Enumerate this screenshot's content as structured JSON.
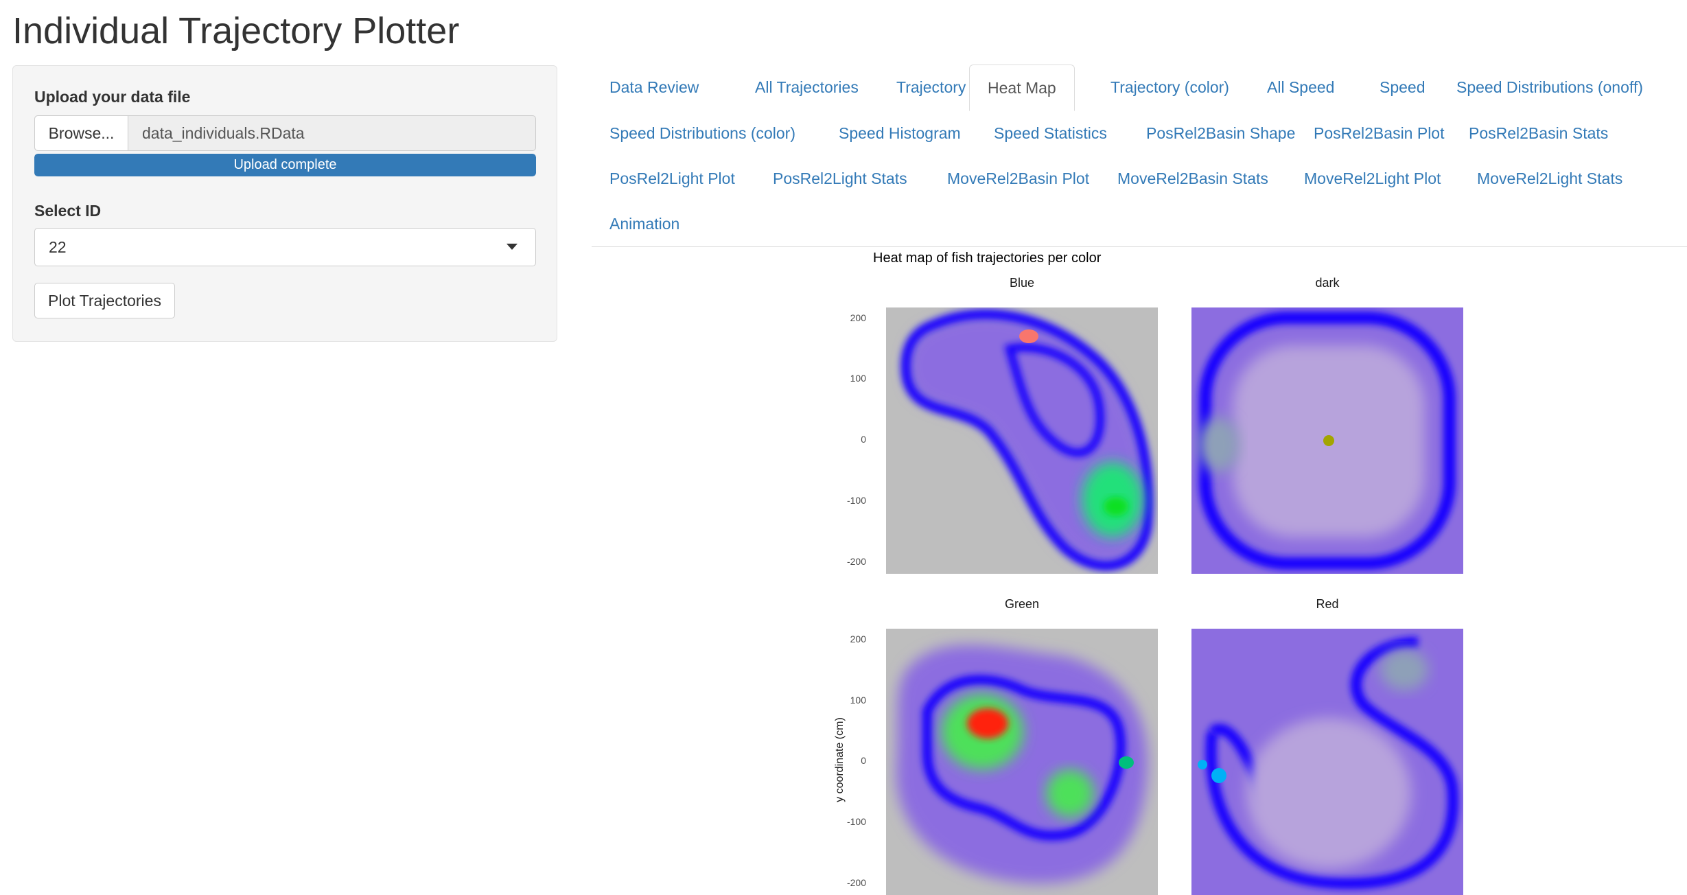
{
  "app": {
    "title": "Individual Trajectory Plotter"
  },
  "sidebar": {
    "upload_label": "Upload your data file",
    "browse_label": "Browse...",
    "file_name": "data_individuals.RData",
    "progress_text": "Upload complete",
    "progress_value": 100,
    "select_label": "Select ID",
    "selected_id": "22",
    "plot_button": "Plot Trajectories"
  },
  "tabs": [
    {
      "label": "Data Review",
      "active": false
    },
    {
      "label": "All Trajectories",
      "active": false
    },
    {
      "label": "Trajectory",
      "active": false
    },
    {
      "label": "Heat Map",
      "active": true
    },
    {
      "label": "Trajectory (color)",
      "active": false
    },
    {
      "label": "All Speed",
      "active": false
    },
    {
      "label": "Speed",
      "active": false
    },
    {
      "label": "Speed Distributions (onoff)",
      "active": false
    },
    {
      "label": "Speed Distributions (color)",
      "active": false
    },
    {
      "label": "Speed Histogram",
      "active": false
    },
    {
      "label": "Speed Statistics",
      "active": false
    },
    {
      "label": "PosRel2Basin Shape",
      "active": false
    },
    {
      "label": "PosRel2Basin Plot",
      "active": false
    },
    {
      "label": "PosRel2Basin Stats",
      "active": false
    },
    {
      "label": "PosRel2Light Plot",
      "active": false
    },
    {
      "label": "PosRel2Light Stats",
      "active": false
    },
    {
      "label": "MoveRel2Basin Plot",
      "active": false
    },
    {
      "label": "MoveRel2Basin Stats",
      "active": false
    },
    {
      "label": "MoveRel2Light Plot",
      "active": false
    },
    {
      "label": "MoveRel2Light Stats",
      "active": false
    },
    {
      "label": "Animation",
      "active": false
    }
  ],
  "heatmap": {
    "title": "Heat map of fish trajectories per color",
    "ylabel": "y coordinate (cm)",
    "yticks": [
      "200",
      "100",
      "0",
      "-100",
      "-200"
    ],
    "panels": [
      {
        "name": "Blue",
        "marker_color": "#f8766d"
      },
      {
        "name": "dark",
        "marker_color": "#a3a500"
      },
      {
        "name": "Green",
        "marker_color": "#00bf7d"
      },
      {
        "name": "Red",
        "marker_color": "#00b0f6"
      }
    ],
    "colors": {
      "low": "#bebebe",
      "mid": "#0000ff",
      "high": "#00ff00",
      "peak": "#ff0000"
    }
  }
}
